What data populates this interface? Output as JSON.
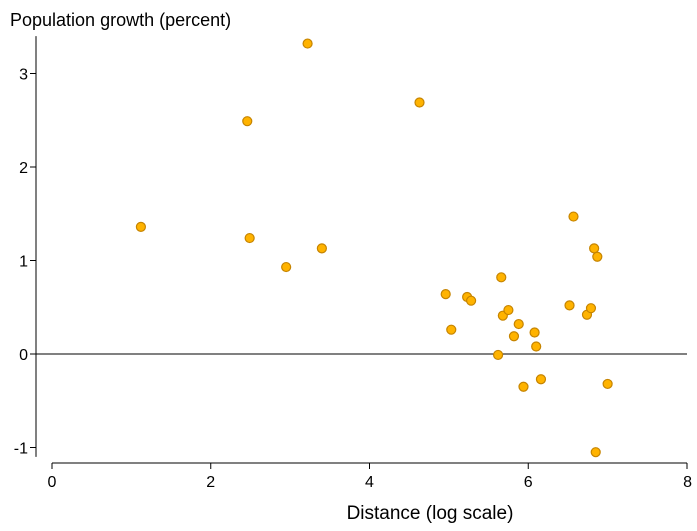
{
  "chart_data": {
    "type": "scatter",
    "title": "",
    "ylabel": "Population growth (percent)",
    "xlabel": "Distance (log scale)",
    "xlim": [
      0,
      8
    ],
    "ylim": [
      -1.1,
      3.4
    ],
    "xticks": [
      0,
      2,
      4,
      6,
      8
    ],
    "yticks": [
      -1,
      0,
      1,
      2,
      3
    ],
    "xtick_labels": [
      "0",
      "2",
      "4",
      "6",
      "8"
    ],
    "ytick_labels": [
      "-1",
      "0",
      "1",
      "2",
      "3"
    ],
    "reference_line_y": 0,
    "grid": false,
    "colors": {
      "marker_fill": "#ffb300",
      "marker_stroke": "#c68400",
      "axis": "#000000"
    },
    "series": [
      {
        "points": [
          {
            "x": 1.12,
            "y": 1.36
          },
          {
            "x": 2.46,
            "y": 2.49
          },
          {
            "x": 2.49,
            "y": 1.24
          },
          {
            "x": 2.95,
            "y": 0.93
          },
          {
            "x": 3.22,
            "y": 3.32
          },
          {
            "x": 3.4,
            "y": 1.13
          },
          {
            "x": 4.63,
            "y": 2.69
          },
          {
            "x": 4.96,
            "y": 0.64
          },
          {
            "x": 5.03,
            "y": 0.26
          },
          {
            "x": 5.23,
            "y": 0.61
          },
          {
            "x": 5.28,
            "y": 0.57
          },
          {
            "x": 5.62,
            "y": -0.01
          },
          {
            "x": 5.66,
            "y": 0.82
          },
          {
            "x": 5.68,
            "y": 0.41
          },
          {
            "x": 5.75,
            "y": 0.47
          },
          {
            "x": 5.82,
            "y": 0.19
          },
          {
            "x": 5.88,
            "y": 0.32
          },
          {
            "x": 5.94,
            "y": -0.35
          },
          {
            "x": 6.08,
            "y": 0.23
          },
          {
            "x": 6.1,
            "y": 0.08
          },
          {
            "x": 6.16,
            "y": -0.27
          },
          {
            "x": 6.52,
            "y": 0.52
          },
          {
            "x": 6.57,
            "y": 1.47
          },
          {
            "x": 6.74,
            "y": 0.42
          },
          {
            "x": 6.79,
            "y": 0.49
          },
          {
            "x": 6.83,
            "y": 1.13
          },
          {
            "x": 6.85,
            "y": -1.05
          },
          {
            "x": 6.87,
            "y": 1.04
          },
          {
            "x": 7.0,
            "y": -0.32
          }
        ]
      }
    ]
  }
}
